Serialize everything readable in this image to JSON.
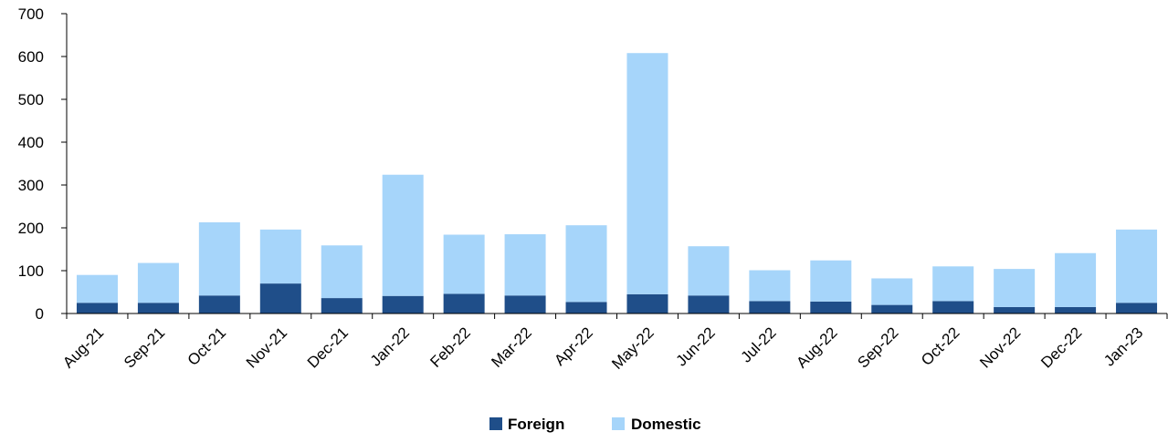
{
  "chart_data": {
    "type": "bar",
    "stacked": true,
    "categories": [
      "Aug-21",
      "Sep-21",
      "Oct-21",
      "Nov-21",
      "Dec-21",
      "Jan-22",
      "Feb-22",
      "Mar-22",
      "Apr-22",
      "May-22",
      "Jun-22",
      "Jul-22",
      "Aug-22",
      "Sep-22",
      "Oct-22",
      "Nov-22",
      "Dec-22",
      "Jan-23"
    ],
    "series": [
      {
        "name": "Foreign",
        "color": "#1f4e89",
        "values": [
          25,
          25,
          42,
          70,
          36,
          41,
          46,
          42,
          27,
          45,
          42,
          29,
          28,
          20,
          29,
          15,
          15,
          25
        ]
      },
      {
        "name": "Domestic",
        "color": "#a6d5fa",
        "values": [
          65,
          93,
          171,
          126,
          123,
          283,
          138,
          143,
          179,
          563,
          115,
          72,
          96,
          62,
          81,
          89,
          126,
          171
        ]
      }
    ],
    "ylim": [
      0,
      700
    ],
    "yticks": [
      0,
      100,
      200,
      300,
      400,
      500,
      600,
      700
    ],
    "legend_position": "bottom",
    "grid": false
  }
}
